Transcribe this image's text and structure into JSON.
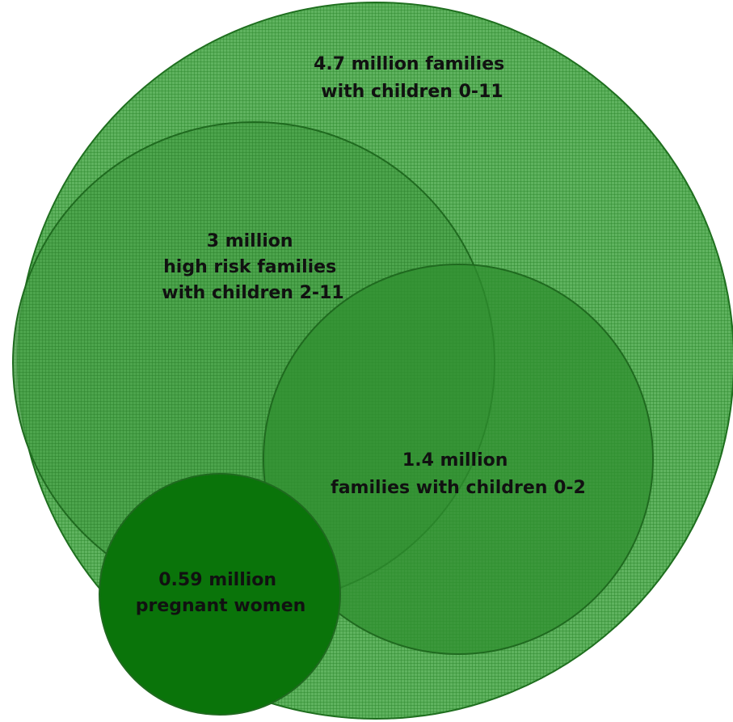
{
  "colors": {
    "outer_fill": "#4fa84f",
    "outer_grid": "#2f8a2f",
    "outer_stroke": "#1f6f1f",
    "mid_fill": "#3f9a3f",
    "inner_fill": "#2f8f2f",
    "small_fill": "#0a740a",
    "stroke": "#1f6a1f"
  },
  "circles": [
    {
      "id": "families-0-11",
      "lines": [
        "4.7 million families",
        "with children 0-11"
      ]
    },
    {
      "id": "high-risk-2-11",
      "lines": [
        "3 million",
        "high risk families",
        "with children 2-11"
      ]
    },
    {
      "id": "families-0-2",
      "lines": [
        "1.4 million",
        "families with children 0-2"
      ]
    },
    {
      "id": "pregnant-women",
      "lines": [
        "0.59 million",
        "pregnant women"
      ]
    }
  ]
}
